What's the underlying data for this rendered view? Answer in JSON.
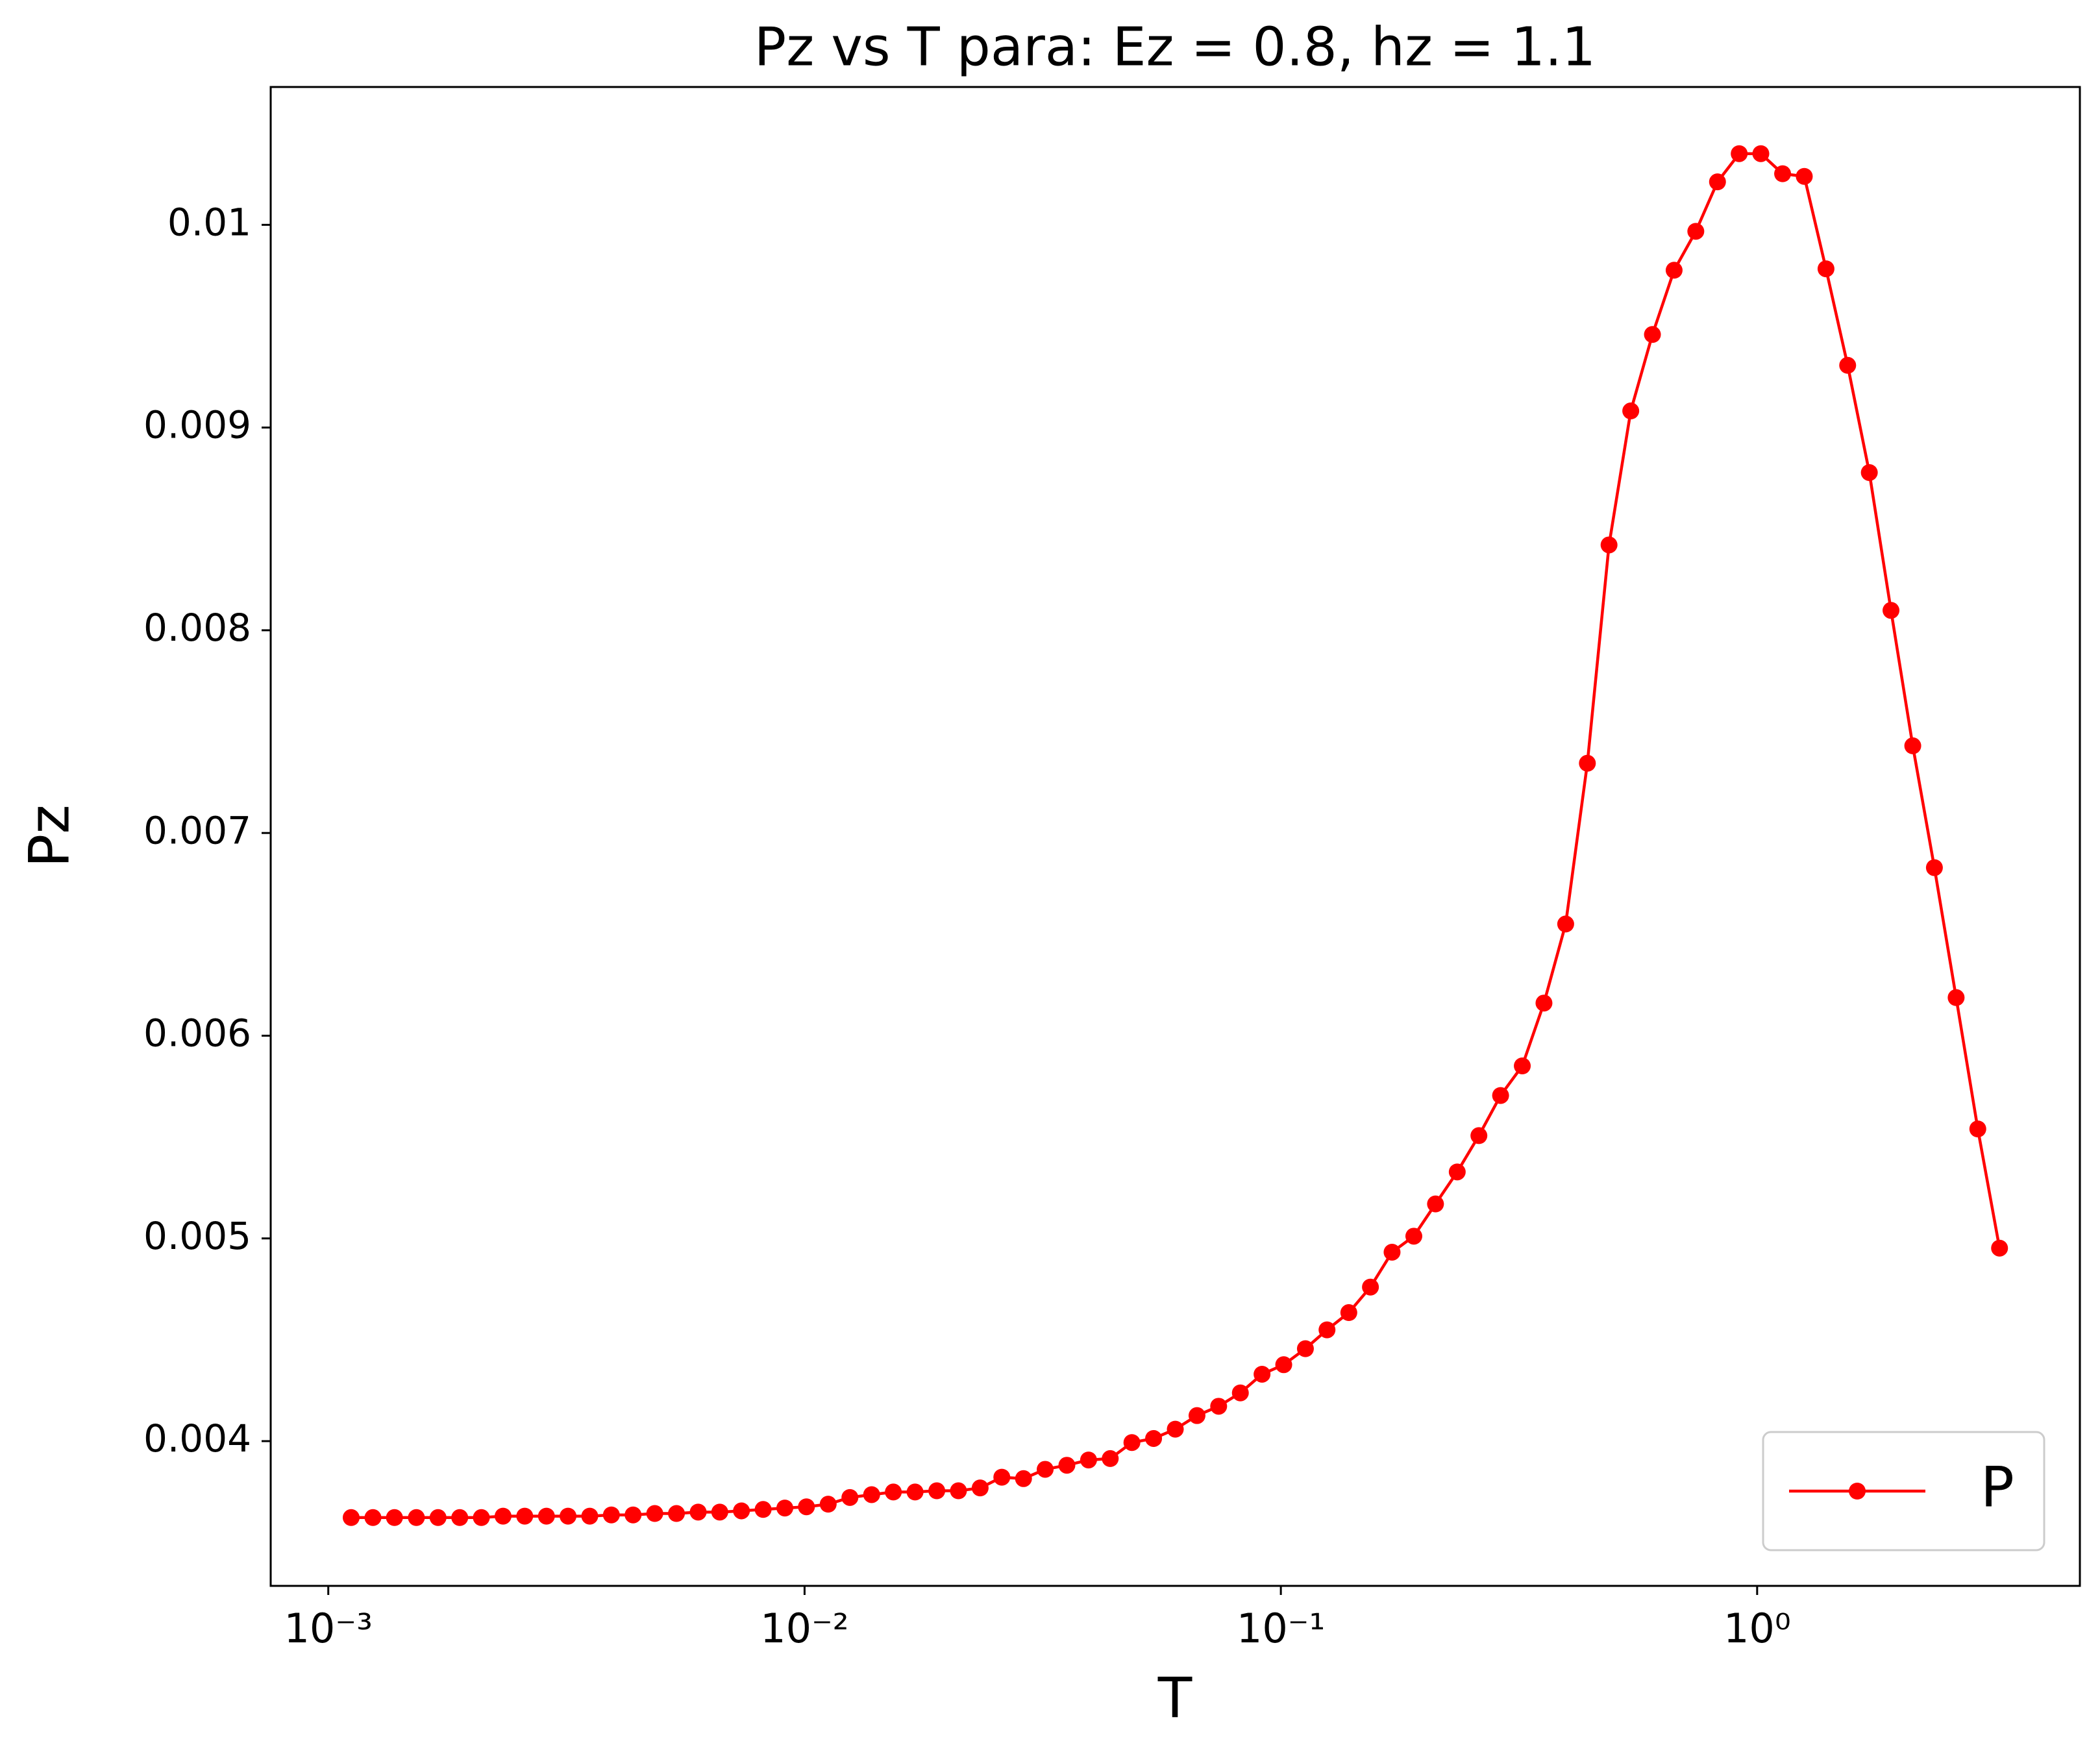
{
  "chart_data": {
    "type": "line",
    "title": "Pz vs T para: Ez = 0.8, hz = 1.1",
    "xlabel": "T",
    "ylabel": "Pz",
    "xscale": "log",
    "legend": "lower right",
    "xlim": [
      0.000757,
      4.76
    ],
    "ylim": [
      0.003286,
      0.01068
    ],
    "xticks": [
      {
        "value": 0.001,
        "label": "10⁻³"
      },
      {
        "value": 0.01,
        "label": "10⁻²"
      },
      {
        "value": 0.1,
        "label": "10⁻¹"
      },
      {
        "value": 1,
        "label": "10⁰"
      }
    ],
    "yticks": [
      0.004,
      0.005,
      0.006,
      0.007,
      0.008,
      0.009,
      0.01
    ],
    "x": [
      0.001117,
      0.001241,
      0.001377,
      0.001531,
      0.0017,
      0.001888,
      0.002096,
      0.002328,
      0.002585,
      0.002871,
      0.003187,
      0.00354,
      0.00393,
      0.004365,
      0.004847,
      0.005383,
      0.005979,
      0.006637,
      0.00737,
      0.008185,
      0.00909,
      0.01009,
      0.01121,
      0.01245,
      0.01383,
      0.01536,
      0.01706,
      0.01895,
      0.02104,
      0.02337,
      0.02595,
      0.02882,
      0.032,
      0.03554,
      0.03947,
      0.04383,
      0.04867,
      0.05405,
      0.06003,
      0.06667,
      0.07403,
      0.08222,
      0.09131,
      0.1014,
      0.1126,
      0.125,
      0.1389,
      0.1542,
      0.1712,
      0.1902,
      0.2112,
      0.2346,
      0.2605,
      0.2893,
      0.3213,
      0.3568,
      0.3963,
      0.4401,
      0.4887,
      0.5428,
      0.6028,
      0.6694,
      0.7434,
      0.8256,
      0.9169,
      1.018,
      1.131,
      1.256,
      1.395,
      1.549,
      1.72,
      1.91,
      2.122,
      2.356,
      2.617,
      2.906,
      3.228
    ],
    "series": [
      {
        "name": "P",
        "color": "#ff0000",
        "values": [
          0.003623,
          0.003623,
          0.003623,
          0.003623,
          0.003623,
          0.003623,
          0.003623,
          0.00363,
          0.00363,
          0.00363,
          0.00363,
          0.00363,
          0.003636,
          0.003636,
          0.003643,
          0.003643,
          0.00365,
          0.00365,
          0.003656,
          0.003663,
          0.00367,
          0.003676,
          0.003689,
          0.003722,
          0.003736,
          0.003749,
          0.003749,
          0.003755,
          0.003755,
          0.003769,
          0.003822,
          0.003815,
          0.003861,
          0.003881,
          0.003907,
          0.003914,
          0.003993,
          0.004013,
          0.004059,
          0.004126,
          0.004172,
          0.004238,
          0.00433,
          0.004377,
          0.004456,
          0.004549,
          0.004634,
          0.00476,
          0.004932,
          0.005011,
          0.00517,
          0.005328,
          0.005507,
          0.005705,
          0.005851,
          0.006161,
          0.006551,
          0.007344,
          0.008421,
          0.009082,
          0.009459,
          0.009776,
          0.009968,
          0.010212,
          0.010351,
          0.010351,
          0.010252,
          0.010239,
          0.009783,
          0.009307,
          0.008778,
          0.008098,
          0.00743,
          0.006829,
          0.006188,
          0.00554,
          0.004952
        ]
      }
    ]
  }
}
